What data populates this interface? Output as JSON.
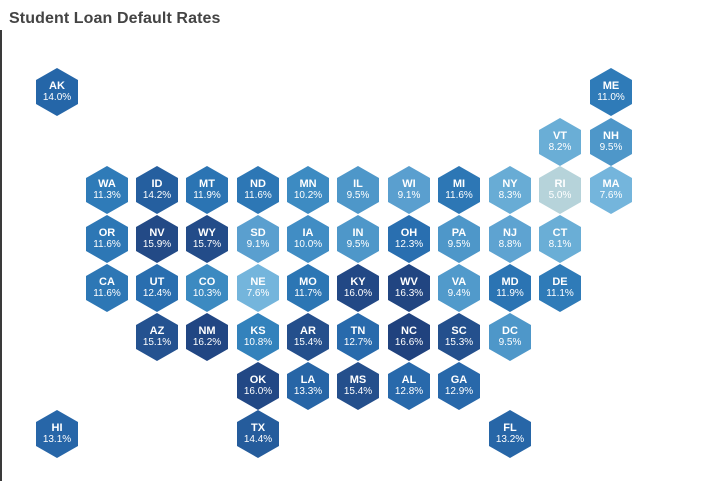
{
  "title": "Student Loan Default Rates",
  "chart_data": {
    "type": "heatmap",
    "subtype": "hexagon tile map",
    "title": "Student Loan Default Rates",
    "value_unit": "%",
    "color_scale": {
      "low": "#b6d3da",
      "high": "#203f78"
    },
    "tiles": [
      {
        "state": "AK",
        "value": 14.0,
        "label": "14.0%",
        "col": 0,
        "row": 0,
        "color": "#2566a8"
      },
      {
        "state": "ME",
        "value": 11.0,
        "label": "11.0%",
        "col": 11,
        "row": 0,
        "color": "#2f7bb8"
      },
      {
        "state": "VT",
        "value": 8.2,
        "label": "8.2%",
        "col": 10,
        "row": 1,
        "color": "#6aaed6"
      },
      {
        "state": "NH",
        "value": 9.5,
        "label": "9.5%",
        "col": 11,
        "row": 1,
        "color": "#4e97c9"
      },
      {
        "state": "WA",
        "value": 11.3,
        "label": "11.3%",
        "col": 1,
        "row": 2,
        "color": "#2f7bb8"
      },
      {
        "state": "ID",
        "value": 14.2,
        "label": "14.2%",
        "col": 2,
        "row": 2,
        "color": "#255f9f"
      },
      {
        "state": "MT",
        "value": 11.9,
        "label": "11.9%",
        "col": 3,
        "row": 2,
        "color": "#2b74b3"
      },
      {
        "state": "ND",
        "value": 11.6,
        "label": "11.6%",
        "col": 4,
        "row": 2,
        "color": "#2d77b5"
      },
      {
        "state": "MN",
        "value": 10.2,
        "label": "10.2%",
        "col": 5,
        "row": 2,
        "color": "#3d8bc2"
      },
      {
        "state": "IL",
        "value": 9.5,
        "label": "9.5%",
        "col": 6,
        "row": 2,
        "color": "#4e97c9"
      },
      {
        "state": "WI",
        "value": 9.1,
        "label": "9.1%",
        "col": 7,
        "row": 2,
        "color": "#5a9fcf"
      },
      {
        "state": "MI",
        "value": 11.6,
        "label": "11.6%",
        "col": 8,
        "row": 2,
        "color": "#2d77b5"
      },
      {
        "state": "NY",
        "value": 8.3,
        "label": "8.3%",
        "col": 9,
        "row": 2,
        "color": "#68acd5"
      },
      {
        "state": "RI",
        "value": 5.0,
        "label": "5.0%",
        "col": 10,
        "row": 2,
        "color": "#b6d3da"
      },
      {
        "state": "MA",
        "value": 7.6,
        "label": "7.6%",
        "col": 11,
        "row": 2,
        "color": "#74b5dc"
      },
      {
        "state": "OR",
        "value": 11.6,
        "label": "11.6%",
        "col": 1,
        "row": 3,
        "color": "#2d77b5"
      },
      {
        "state": "NV",
        "value": 15.9,
        "label": "15.9%",
        "col": 2,
        "row": 3,
        "color": "#234a86"
      },
      {
        "state": "WY",
        "value": 15.7,
        "label": "15.7%",
        "col": 3,
        "row": 3,
        "color": "#234c89"
      },
      {
        "state": "SD",
        "value": 9.1,
        "label": "9.1%",
        "col": 4,
        "row": 3,
        "color": "#5a9fcf"
      },
      {
        "state": "IA",
        "value": 10.0,
        "label": "10.0%",
        "col": 5,
        "row": 3,
        "color": "#418dc4"
      },
      {
        "state": "IN",
        "value": 9.5,
        "label": "9.5%",
        "col": 6,
        "row": 3,
        "color": "#4e97c9"
      },
      {
        "state": "OH",
        "value": 12.3,
        "label": "12.3%",
        "col": 7,
        "row": 3,
        "color": "#296fb0"
      },
      {
        "state": "PA",
        "value": 9.5,
        "label": "9.5%",
        "col": 8,
        "row": 3,
        "color": "#4e97c9"
      },
      {
        "state": "NJ",
        "value": 8.8,
        "label": "8.8%",
        "col": 9,
        "row": 3,
        "color": "#5ea3d1"
      },
      {
        "state": "CT",
        "value": 8.1,
        "label": "8.1%",
        "col": 10,
        "row": 3,
        "color": "#6aaed6"
      },
      {
        "state": "CA",
        "value": 11.6,
        "label": "11.6%",
        "col": 1,
        "row": 4,
        "color": "#2d77b5"
      },
      {
        "state": "UT",
        "value": 12.4,
        "label": "12.4%",
        "col": 2,
        "row": 4,
        "color": "#296eaf"
      },
      {
        "state": "CO",
        "value": 10.3,
        "label": "10.3%",
        "col": 3,
        "row": 4,
        "color": "#3c8ac1"
      },
      {
        "state": "NE",
        "value": 7.6,
        "label": "7.6%",
        "col": 4,
        "row": 4,
        "color": "#74b5dc"
      },
      {
        "state": "MO",
        "value": 11.7,
        "label": "11.7%",
        "col": 5,
        "row": 4,
        "color": "#2c76b4"
      },
      {
        "state": "KY",
        "value": 16.0,
        "label": "16.0%",
        "col": 6,
        "row": 4,
        "color": "#224885"
      },
      {
        "state": "WV",
        "value": 16.3,
        "label": "16.3%",
        "col": 7,
        "row": 4,
        "color": "#214581"
      },
      {
        "state": "VA",
        "value": 9.4,
        "label": "9.4%",
        "col": 8,
        "row": 4,
        "color": "#519acb"
      },
      {
        "state": "MD",
        "value": 11.9,
        "label": "11.9%",
        "col": 9,
        "row": 4,
        "color": "#2b74b3"
      },
      {
        "state": "DE",
        "value": 11.1,
        "label": "11.1%",
        "col": 10,
        "row": 4,
        "color": "#2f7bb8"
      },
      {
        "state": "AZ",
        "value": 15.1,
        "label": "15.1%",
        "col": 2,
        "row": 5,
        "color": "#245290"
      },
      {
        "state": "NM",
        "value": 16.2,
        "label": "16.2%",
        "col": 3,
        "row": 5,
        "color": "#214683"
      },
      {
        "state": "KS",
        "value": 10.8,
        "label": "10.8%",
        "col": 4,
        "row": 5,
        "color": "#3382bc"
      },
      {
        "state": "AR",
        "value": 15.4,
        "label": "15.4%",
        "col": 5,
        "row": 5,
        "color": "#244f8c"
      },
      {
        "state": "TN",
        "value": 12.7,
        "label": "12.7%",
        "col": 6,
        "row": 5,
        "color": "#286aac"
      },
      {
        "state": "NC",
        "value": 16.6,
        "label": "16.6%",
        "col": 7,
        "row": 5,
        "color": "#20427e"
      },
      {
        "state": "SC",
        "value": 15.3,
        "label": "15.3%",
        "col": 8,
        "row": 5,
        "color": "#24508d"
      },
      {
        "state": "DC",
        "value": 9.5,
        "label": "9.5%",
        "col": 9,
        "row": 5,
        "color": "#4e97c9"
      },
      {
        "state": "OK",
        "value": 16.0,
        "label": "16.0%",
        "col": 4,
        "row": 6,
        "color": "#224885"
      },
      {
        "state": "LA",
        "value": 13.3,
        "label": "13.3%",
        "col": 5,
        "row": 6,
        "color": "#2765a6"
      },
      {
        "state": "MS",
        "value": 15.4,
        "label": "15.4%",
        "col": 6,
        "row": 6,
        "color": "#244f8c"
      },
      {
        "state": "AL",
        "value": 12.8,
        "label": "12.8%",
        "col": 7,
        "row": 6,
        "color": "#2869ab"
      },
      {
        "state": "GA",
        "value": 12.9,
        "label": "12.9%",
        "col": 8,
        "row": 6,
        "color": "#2868aa"
      },
      {
        "state": "HI",
        "value": 13.1,
        "label": "13.1%",
        "col": 0,
        "row": 7,
        "color": "#2766a8"
      },
      {
        "state": "TX",
        "value": 14.4,
        "label": "14.4%",
        "col": 4,
        "row": 7,
        "color": "#255c9c"
      },
      {
        "state": "FL",
        "value": 13.2,
        "label": "13.2%",
        "col": 9,
        "row": 7,
        "color": "#2766a7"
      }
    ]
  }
}
